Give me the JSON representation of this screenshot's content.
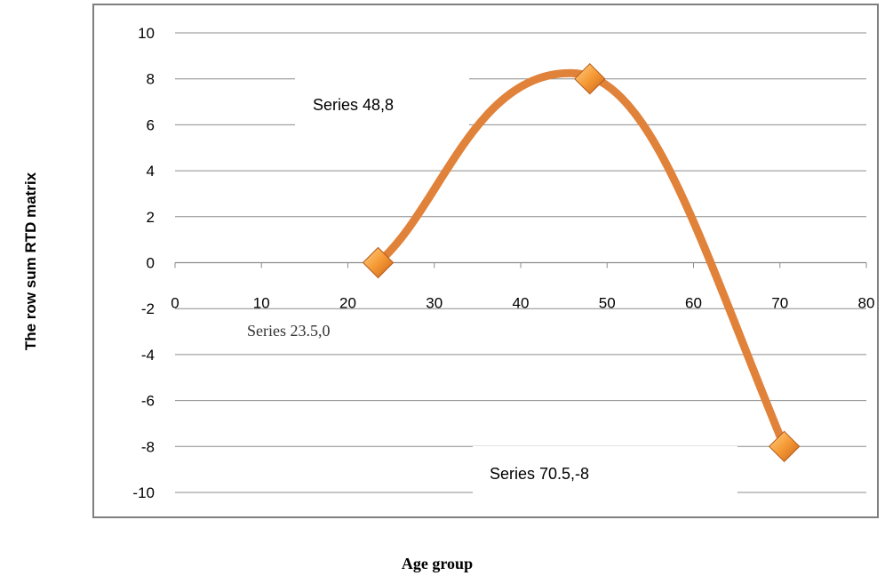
{
  "chart_data": {
    "type": "scatter",
    "title": "",
    "xlabel": "Age group",
    "ylabel": "The row sum RTD matrix",
    "xlim": [
      0,
      80
    ],
    "ylim": [
      -10,
      10
    ],
    "x_ticks": [
      0,
      10,
      20,
      30,
      40,
      50,
      60,
      70,
      80
    ],
    "y_ticks": [
      10,
      8,
      6,
      4,
      2,
      0,
      -2,
      -4,
      -6,
      -8,
      -10
    ],
    "grid": "horizontal",
    "smooth_line": true,
    "legend": "none",
    "series": [
      {
        "x": [
          23.5,
          48,
          70.5
        ],
        "y": [
          0,
          8,
          -8
        ]
      }
    ],
    "annotations": [
      {
        "text": "Series 48,8"
      },
      {
        "text": "Series 23.5,0"
      },
      {
        "text": "Series 70.5,-8"
      }
    ],
    "colors": {
      "line": "#E0823A",
      "marker": "#F08A2A",
      "grid": "#8C8C8C",
      "frame": "#7F7F7F"
    }
  }
}
